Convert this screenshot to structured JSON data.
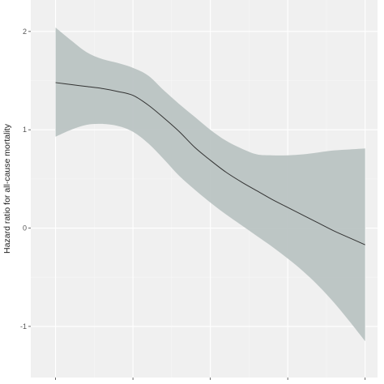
{
  "chart_data": {
    "type": "line",
    "title": "",
    "xlabel": "",
    "ylabel": "Hazard ratio for all-cause mortality",
    "ylim": [
      -1.52,
      2.32
    ],
    "xlim": [
      -0.08,
      1.04
    ],
    "y_ticks": [
      -1,
      0,
      1,
      2
    ],
    "y_tick_labels": [
      "-1",
      "0",
      "1",
      "2"
    ],
    "x_ticks": [
      0,
      0.25,
      0.5,
      0.75,
      1
    ],
    "x_tick_labels": [
      "",
      "",
      "",
      "",
      ""
    ],
    "grid": true,
    "legend": "none",
    "series": [
      {
        "x": [
          0,
          0.05,
          0.1,
          0.15,
          0.2,
          0.25,
          0.3,
          0.35,
          0.4,
          0.45,
          0.5,
          0.55,
          0.6,
          0.65,
          0.7,
          0.75,
          0.8,
          0.85,
          0.9,
          0.95,
          1.0
        ],
        "y": [
          1.48,
          1.46,
          1.44,
          1.42,
          1.39,
          1.35,
          1.25,
          1.12,
          0.98,
          0.82,
          0.69,
          0.57,
          0.47,
          0.38,
          0.29,
          0.21,
          0.13,
          0.05,
          -0.03,
          -0.1,
          -0.17
        ],
        "lower": [
          0.93,
          1.0,
          1.05,
          1.06,
          1.04,
          0.98,
          0.86,
          0.7,
          0.53,
          0.39,
          0.26,
          0.14,
          0.03,
          -0.08,
          -0.19,
          -0.31,
          -0.44,
          -0.59,
          -0.76,
          -0.95,
          -1.15
        ],
        "upper": [
          2.04,
          1.91,
          1.79,
          1.72,
          1.68,
          1.63,
          1.55,
          1.4,
          1.26,
          1.13,
          1.0,
          0.89,
          0.81,
          0.75,
          0.74,
          0.74,
          0.75,
          0.77,
          0.79,
          0.8,
          0.81
        ]
      }
    ],
    "colors": {
      "panel": "#f0f0f0",
      "grid_major": "#ffffff",
      "grid_minor": "#f7f7f7",
      "band": "#b7c1c0",
      "line": "#333333",
      "tick": "#444444"
    }
  }
}
